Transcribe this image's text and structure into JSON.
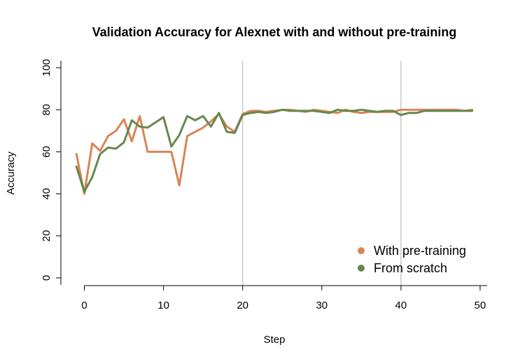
{
  "chart_data": {
    "type": "line",
    "title": "Validation Accuracy for Alexnet with and without pre-training",
    "xlabel": "Step",
    "ylabel": "Accuracy",
    "xlim": [
      -2,
      51
    ],
    "ylim": [
      0,
      100
    ],
    "xticks": [
      0,
      10,
      20,
      30,
      40,
      50
    ],
    "yticks": [
      0,
      20,
      40,
      60,
      80,
      100
    ],
    "vlines": [
      20,
      40
    ],
    "grid": false,
    "legend_position": "bottom-right",
    "x": [
      -1,
      0,
      1,
      2,
      3,
      4,
      5,
      6,
      7,
      8,
      9,
      10,
      11,
      12,
      13,
      14,
      15,
      16,
      17,
      18,
      19,
      20,
      21,
      22,
      23,
      24,
      25,
      26,
      27,
      28,
      29,
      30,
      31,
      32,
      33,
      34,
      35,
      36,
      37,
      38,
      39,
      40,
      41,
      42,
      43,
      44,
      45,
      46,
      47,
      48,
      49
    ],
    "series": [
      {
        "name": "With pre-training",
        "color": "#D98455",
        "values": [
          59,
          40,
          64,
          60.5,
          67.5,
          70,
          75.5,
          65,
          77,
          60,
          60,
          60,
          60,
          44,
          67.5,
          69.5,
          71.5,
          74.5,
          78,
          72,
          69.5,
          78,
          79.5,
          79.5,
          79,
          79.5,
          80,
          80,
          79.5,
          79,
          80,
          79.5,
          79,
          78.5,
          80,
          79,
          78.5,
          79,
          79,
          79,
          79,
          80,
          80,
          80,
          80,
          80,
          80,
          80,
          80,
          79.5,
          80
        ]
      },
      {
        "name": "From scratch",
        "color": "#66874F",
        "values": [
          53,
          41,
          48,
          59,
          62,
          61.5,
          64.5,
          75,
          72,
          71.5,
          74,
          76.5,
          62.5,
          68,
          77,
          75,
          77,
          72,
          78.5,
          69.5,
          69,
          77.5,
          78.5,
          79,
          78.5,
          79,
          80,
          79.5,
          79.5,
          79.5,
          79.5,
          79,
          78.5,
          80,
          79.5,
          79.5,
          80,
          79.5,
          79,
          79.5,
          79.5,
          77.5,
          78.5,
          78.5,
          79.5,
          79.5,
          79.5,
          79.5,
          79.5,
          79.5,
          79.5
        ]
      }
    ]
  }
}
